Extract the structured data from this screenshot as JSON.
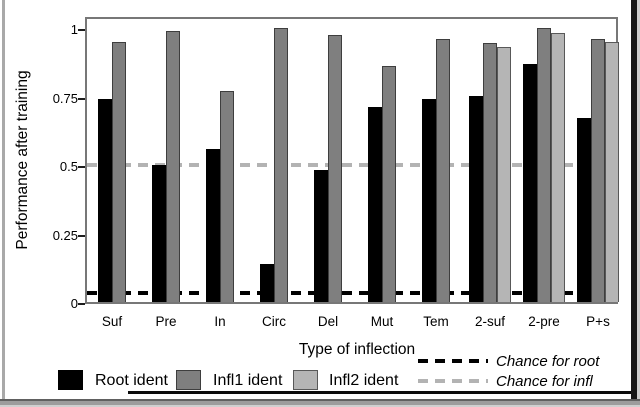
{
  "chart_data": {
    "type": "bar",
    "title": "",
    "xlabel": "Type of inflection",
    "ylabel": "Performance after training",
    "ylim": [
      0,
      1
    ],
    "yticks": [
      0,
      0.25,
      0.5,
      0.75,
      1
    ],
    "ytick_labels": [
      "0",
      "0.25",
      "0.5",
      "0.75",
      "1"
    ],
    "grid": "off",
    "legend_position": "bottom",
    "categories": [
      "Suf",
      "Pre",
      "In",
      "Circ",
      "Del",
      "Mut",
      "Tem",
      "2-suf",
      "2-pre",
      "P+s"
    ],
    "series": [
      {
        "name": "Root ident",
        "color": "#000000",
        "values": [
          0.74,
          0.5,
          0.56,
          0.14,
          0.48,
          0.71,
          0.74,
          0.75,
          0.87,
          0.67
        ]
      },
      {
        "name": "Infl1 ident",
        "color": "#7f7f7f",
        "values": [
          0.95,
          0.99,
          0.77,
          1.0,
          0.975,
          0.86,
          0.96,
          0.945,
          1.0,
          0.96
        ]
      },
      {
        "name": "Infl2 ident",
        "color": "#b5b5b5",
        "values": [
          null,
          null,
          null,
          null,
          null,
          null,
          null,
          0.93,
          0.98,
          0.95
        ]
      }
    ],
    "reference_lines": [
      {
        "name": "Chance for root",
        "value": 0.033,
        "style": "dashed",
        "color": "#000000"
      },
      {
        "name": "Chance for infl",
        "value": 0.5,
        "style": "dashed",
        "color": "#b3b3b3"
      }
    ]
  }
}
